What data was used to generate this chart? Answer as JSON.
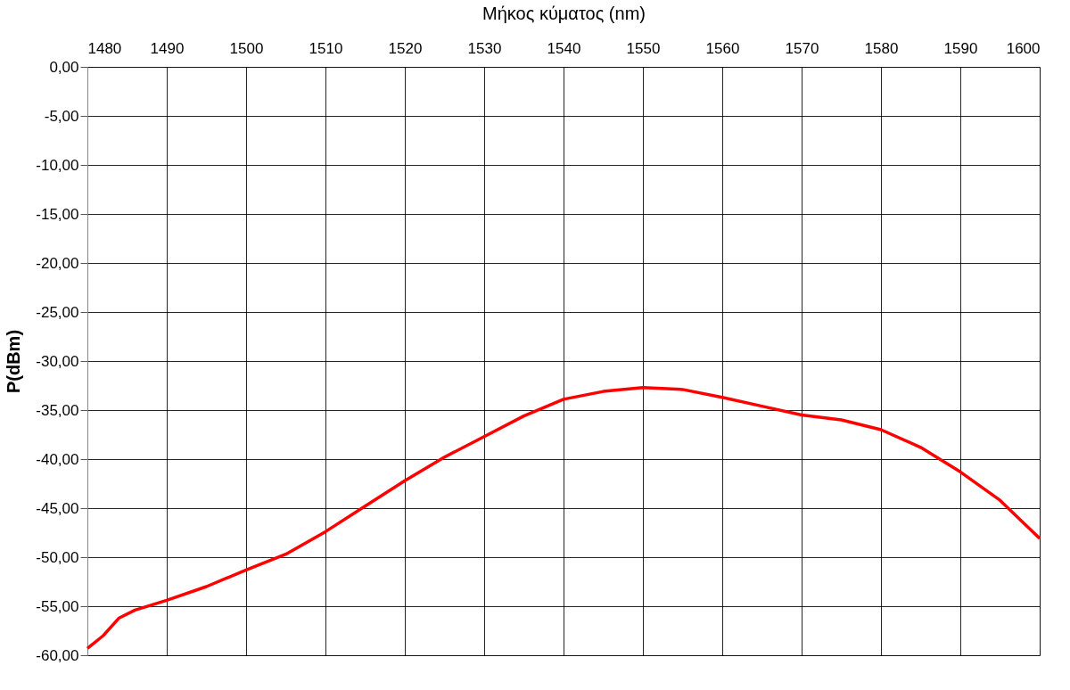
{
  "chart_data": {
    "type": "line",
    "xlabel": "Μήκος κύματος (nm)",
    "ylabel": "P(dBm)",
    "x": [
      1480,
      1482,
      1484,
      1486,
      1490,
      1495,
      1500,
      1505,
      1510,
      1515,
      1520,
      1525,
      1530,
      1535,
      1540,
      1545,
      1550,
      1555,
      1560,
      1565,
      1570,
      1575,
      1580,
      1585,
      1590,
      1595,
      1600
    ],
    "series": [
      {
        "color": "#ff0000",
        "values": [
          -59.3,
          -58.0,
          -56.2,
          -55.4,
          -54.4,
          -53.0,
          -51.3,
          -49.7,
          -47.4,
          -44.8,
          -42.2,
          -39.8,
          -37.7,
          -35.6,
          -33.9,
          -33.1,
          -32.7,
          -32.9,
          -33.7,
          -34.6,
          -35.5,
          -36.0,
          -37.0,
          -38.8,
          -41.3,
          -44.2,
          -48.1
        ]
      }
    ],
    "xlim": [
      1480,
      1600
    ],
    "xticks": [
      1480,
      1490,
      1500,
      1510,
      1520,
      1530,
      1540,
      1550,
      1560,
      1570,
      1580,
      1590,
      1600
    ],
    "ylim": [
      -60,
      0
    ],
    "yticks": [
      {
        "value": 0,
        "label": "0,00"
      },
      {
        "value": -5,
        "label": "-5,00"
      },
      {
        "value": -10,
        "label": "-10,00"
      },
      {
        "value": -15,
        "label": "-15,00"
      },
      {
        "value": -20,
        "label": "-20,00"
      },
      {
        "value": -25,
        "label": "-25,00"
      },
      {
        "value": -30,
        "label": "-30,00"
      },
      {
        "value": -35,
        "label": "-35,00"
      },
      {
        "value": -40,
        "label": "-40,00"
      },
      {
        "value": -45,
        "label": "-45,00"
      },
      {
        "value": -50,
        "label": "-50,00"
      },
      {
        "value": -55,
        "label": "-55,00"
      },
      {
        "value": -60,
        "label": "-60,00"
      }
    ],
    "grid": true,
    "legend": false,
    "marker": "none",
    "line_style": "solid"
  }
}
